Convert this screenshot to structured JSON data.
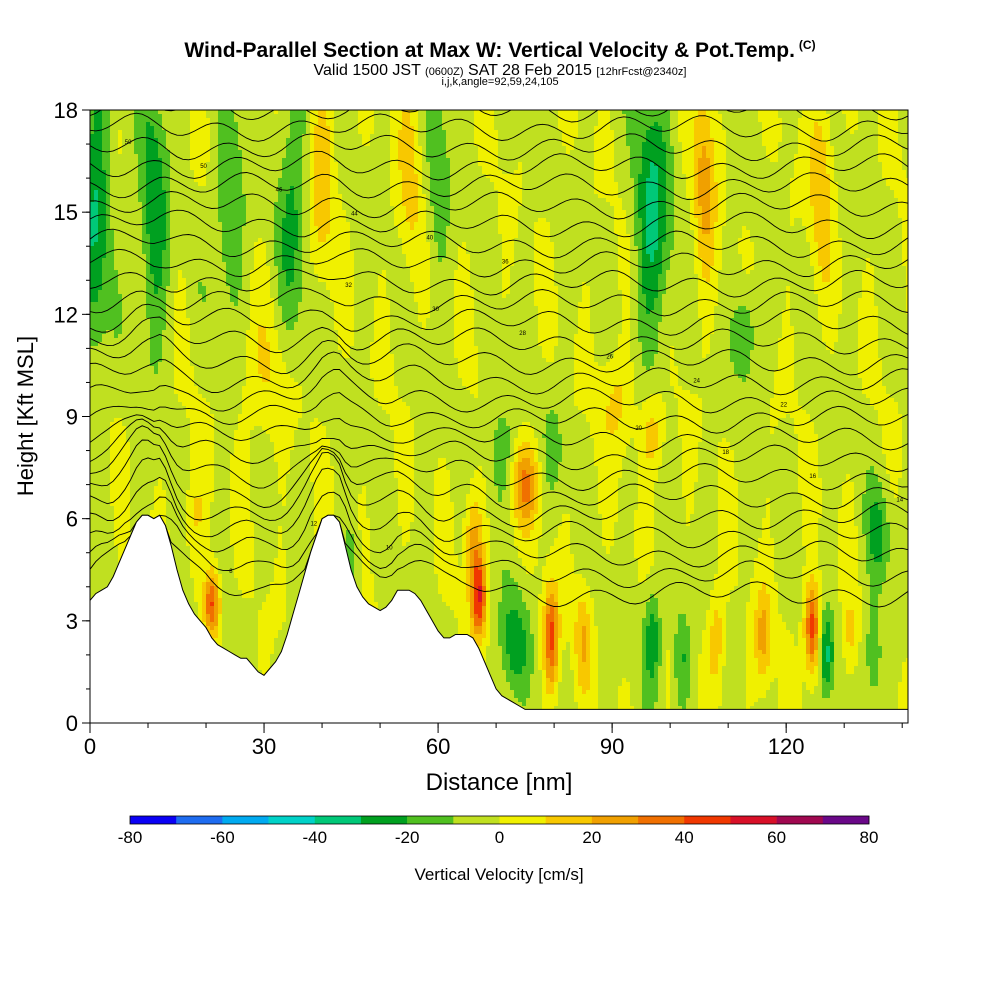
{
  "title": {
    "main": "Wind-Parallel Section at Max W: Vertical Velocity & Pot.Temp.",
    "mark": "(C)",
    "valid_a": "Valid 1500 JST",
    "valid_b": "(0600Z)",
    "valid_c": "SAT 28 Feb 2015",
    "valid_d": "[12hrFcst@2340z]",
    "params": "i,j,k,angle=92,59,24,105"
  },
  "chart_data": {
    "type": "heatmap",
    "xlabel": "Distance [nm]",
    "ylabel": "Height [Kft MSL]",
    "xlim": [
      0,
      141
    ],
    "ylim": [
      0,
      18
    ],
    "xticks": [
      "0",
      "30",
      "60",
      "90",
      "120"
    ],
    "yticks": [
      "0",
      "3",
      "6",
      "9",
      "12",
      "15",
      "18"
    ],
    "colorbar": {
      "label": "Vertical Velocity [cm/s]",
      "ticks": [
        "-80",
        "-60",
        "-40",
        "-20",
        "0",
        "20",
        "40",
        "60",
        "80"
      ],
      "bins": [
        -80,
        -70,
        -60,
        -50,
        -40,
        -30,
        -20,
        -10,
        0,
        10,
        20,
        30,
        40,
        50,
        60,
        70,
        80
      ],
      "colors": [
        "#0a00f5",
        "#1e6cf0",
        "#00aaf0",
        "#00d2c8",
        "#00c878",
        "#00a020",
        "#50c020",
        "#c0e020",
        "#f0f000",
        "#f8c800",
        "#f0a000",
        "#f07000",
        "#f03800",
        "#d81028",
        "#a00850",
        "#6a0888"
      ]
    },
    "terrain": {
      "x": [
        0,
        1,
        2,
        3,
        4,
        5,
        6,
        7,
        8,
        9,
        10,
        11,
        12,
        13,
        14,
        15,
        16,
        17,
        18,
        19,
        20,
        21,
        22,
        23,
        24,
        25,
        26,
        27,
        28,
        29,
        30,
        31,
        32,
        33,
        34,
        35,
        36,
        37,
        38,
        39,
        40,
        41,
        42,
        43,
        44,
        45,
        46,
        47,
        48,
        49,
        50,
        51,
        52,
        53,
        54,
        55,
        56,
        57,
        58,
        59,
        60,
        61,
        62,
        63,
        64,
        65,
        66,
        67,
        68,
        69,
        70,
        71,
        72,
        73,
        74,
        75,
        76,
        77,
        78,
        79,
        80,
        81,
        82,
        83,
        84,
        85,
        86,
        87,
        88,
        89,
        90,
        91,
        92,
        93,
        94,
        95,
        96,
        97,
        98,
        99,
        100,
        101,
        102,
        103,
        104,
        105,
        106,
        107,
        108,
        109,
        110,
        111,
        112,
        113,
        114,
        115,
        116,
        117,
        118,
        119,
        120,
        121,
        122,
        123,
        124,
        125,
        126,
        127,
        128,
        129,
        130,
        131,
        132,
        133,
        134,
        135,
        136,
        137,
        138,
        139,
        140,
        141
      ],
      "h": [
        3.6,
        3.8,
        3.9,
        4.0,
        4.3,
        4.7,
        5.1,
        5.5,
        5.9,
        6.1,
        6.1,
        6.0,
        6.1,
        5.8,
        5.2,
        4.5,
        3.9,
        3.5,
        3.2,
        3.0,
        2.8,
        2.5,
        2.3,
        2.2,
        2.1,
        2.0,
        1.9,
        1.9,
        1.7,
        1.5,
        1.4,
        1.6,
        1.8,
        2.1,
        2.6,
        3.2,
        3.8,
        4.4,
        5.0,
        5.5,
        6.0,
        6.1,
        6.1,
        5.9,
        5.2,
        4.5,
        4.0,
        3.7,
        3.5,
        3.4,
        3.3,
        3.4,
        3.6,
        3.9,
        3.9,
        3.9,
        3.8,
        3.6,
        3.3,
        3.0,
        2.7,
        2.5,
        2.5,
        2.6,
        2.6,
        2.6,
        2.5,
        2.2,
        1.8,
        1.4,
        1.0,
        0.8,
        0.7,
        0.6,
        0.5,
        0.4,
        0.4,
        0.4,
        0.4,
        0.4,
        0.4,
        0.4,
        0.4,
        0.4,
        0.4,
        0.4,
        0.4,
        0.4,
        0.4,
        0.4,
        0.4,
        0.4,
        0.4,
        0.4,
        0.4,
        0.4,
        0.4,
        0.4,
        0.4,
        0.4,
        0.4,
        0.4,
        0.4,
        0.4,
        0.4,
        0.4,
        0.4,
        0.4,
        0.4,
        0.4,
        0.4,
        0.4,
        0.4,
        0.4,
        0.4,
        0.4,
        0.4,
        0.4,
        0.4,
        0.4,
        0.4,
        0.4,
        0.4,
        0.4,
        0.4,
        0.4,
        0.4,
        0.4,
        0.4,
        0.4,
        0.4,
        0.4,
        0.4,
        0.4,
        0.4,
        0.4,
        0.4,
        0.4,
        0.4,
        0.4,
        0.4,
        0.4
      ]
    },
    "velocity_features": [
      {
        "x": 1,
        "dx": 2.5,
        "y": 15,
        "dy": 4,
        "w": -30
      },
      {
        "x": 11,
        "dx": 2.5,
        "y": 15,
        "dy": 4,
        "w": -25
      },
      {
        "x": 24,
        "dx": 2.5,
        "y": 15,
        "dy": 3,
        "w": -20
      },
      {
        "x": 35,
        "dx": 2.5,
        "y": 15,
        "dy": 4,
        "w": -20
      },
      {
        "x": 40,
        "dx": 2,
        "y": 16,
        "dy": 3,
        "w": 20
      },
      {
        "x": 55,
        "dx": 2,
        "y": 16,
        "dy": 3,
        "w": 15
      },
      {
        "x": 60,
        "dx": 2,
        "y": 16,
        "dy": 3,
        "w": -15
      },
      {
        "x": 97,
        "dx": 3,
        "y": 15,
        "dy": 4,
        "w": -30
      },
      {
        "x": 106,
        "dx": 2,
        "y": 16,
        "dy": 3,
        "w": 25
      },
      {
        "x": 126,
        "dx": 2,
        "y": 16,
        "dy": 3,
        "w": 20
      },
      {
        "x": 113,
        "dx": 2,
        "y": 11.5,
        "dy": 1.5,
        "w": -20
      },
      {
        "x": 30,
        "dx": 5,
        "y": 10,
        "dy": 2,
        "w": 10
      },
      {
        "x": 91,
        "dx": 3,
        "y": 9.5,
        "dy": 1.5,
        "w": 15
      },
      {
        "x": 97,
        "dx": 2,
        "y": 8.5,
        "dy": 1.2,
        "w": 20
      },
      {
        "x": 75,
        "dx": 2.5,
        "y": 7,
        "dy": 1.2,
        "w": 30
      },
      {
        "x": 71,
        "dx": 2.5,
        "y": 8,
        "dy": 1.5,
        "w": -15
      },
      {
        "x": 80,
        "dx": 2,
        "y": 8,
        "dy": 1.5,
        "w": -10
      },
      {
        "x": 136,
        "dx": 2,
        "y": 5.5,
        "dy": 1.5,
        "w": -20
      },
      {
        "x": 21,
        "dx": 1.4,
        "y": 3.5,
        "dy": 1,
        "w": 45
      },
      {
        "x": 18,
        "dx": 2,
        "y": 6,
        "dy": 1.5,
        "w": 12
      },
      {
        "x": 45,
        "dx": 1.5,
        "y": 4.5,
        "dy": 1.5,
        "w": -15
      },
      {
        "x": 67,
        "dx": 1.3,
        "y": 3.7,
        "dy": 1.2,
        "w": 50
      },
      {
        "x": 66,
        "dx": 1.5,
        "y": 5.5,
        "dy": 1.5,
        "w": 25
      },
      {
        "x": 73,
        "dx": 2.5,
        "y": 2.3,
        "dy": 1.5,
        "w": -25
      },
      {
        "x": 79.5,
        "dx": 1.3,
        "y": 2.5,
        "dy": 1.5,
        "w": 45
      },
      {
        "x": 85,
        "dx": 1.5,
        "y": 2.5,
        "dy": 1.5,
        "w": 20
      },
      {
        "x": 97,
        "dx": 1.5,
        "y": 2.5,
        "dy": 1.5,
        "w": -25
      },
      {
        "x": 102,
        "dx": 1.5,
        "y": 2,
        "dy": 1.5,
        "w": -20
      },
      {
        "x": 108,
        "dx": 1.5,
        "y": 2.5,
        "dy": 1.5,
        "w": 20
      },
      {
        "x": 116,
        "dx": 1.5,
        "y": 2.5,
        "dy": 1.5,
        "w": 25
      },
      {
        "x": 124.5,
        "dx": 1.3,
        "y": 2.8,
        "dy": 1.3,
        "w": 50
      },
      {
        "x": 127,
        "dx": 1.3,
        "y": 2,
        "dy": 1.3,
        "w": -30
      },
      {
        "x": 131,
        "dx": 1.2,
        "y": 2.5,
        "dy": 1.3,
        "w": 15
      },
      {
        "x": 135,
        "dx": 1.5,
        "y": 2,
        "dy": 1.5,
        "w": -20
      }
    ],
    "theta_contours": {
      "base_level": 4,
      "interval": 1,
      "count": 28,
      "labels": [
        "50",
        "50",
        "46",
        "44",
        "40",
        "36",
        "32",
        "30",
        "28",
        "26",
        "24",
        "22",
        "20",
        "18",
        "16",
        "14",
        "12",
        "10",
        "8"
      ]
    }
  }
}
